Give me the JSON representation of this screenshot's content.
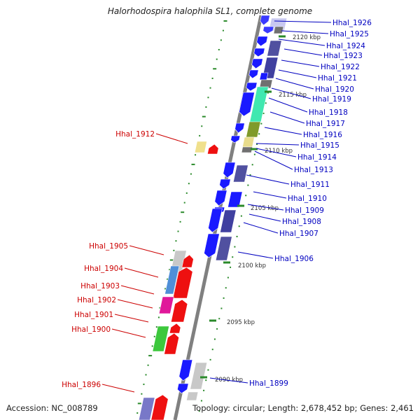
{
  "title": "Halorhodospira halophila SL1, complete genome",
  "footer": {
    "accession": "Accession: NC_008789",
    "summary": "Topology: circular; Length: 2,678,452 bp; Genes: 2,461"
  },
  "colors": {
    "backbone": "#808080",
    "forward_label": "#0000c0",
    "reverse_label": "#cc0000",
    "tick": "#2a8a2a"
  },
  "ticks": [
    "2120 kbp",
    "2115 kbp",
    "2110 kbp",
    "2105 kbp",
    "2100 kbp",
    "2095 kbp",
    "2090 kbp"
  ],
  "forward_labels": [
    "Hhal_1926",
    "Hhal_1925",
    "Hhal_1924",
    "Hhal_1923",
    "Hhal_1922",
    "Hhal_1921",
    "Hhal_1920",
    "Hhal_1919",
    "Hhal_1918",
    "Hhal_1917",
    "Hhal_1916",
    "Hhal_1915",
    "Hhal_1914",
    "Hhal_1913",
    "Hhal_1911",
    "Hhal_1910",
    "Hhal_1909",
    "Hhal_1908",
    "Hhal_1907",
    "Hhal_1906",
    "Hhal_1899"
  ],
  "reverse_labels": [
    "Hhal_1912",
    "Hhal_1905",
    "Hhal_1904",
    "Hhal_1903",
    "Hhal_1902",
    "Hhal_1901",
    "Hhal_1900",
    "Hhal_1896"
  ]
}
